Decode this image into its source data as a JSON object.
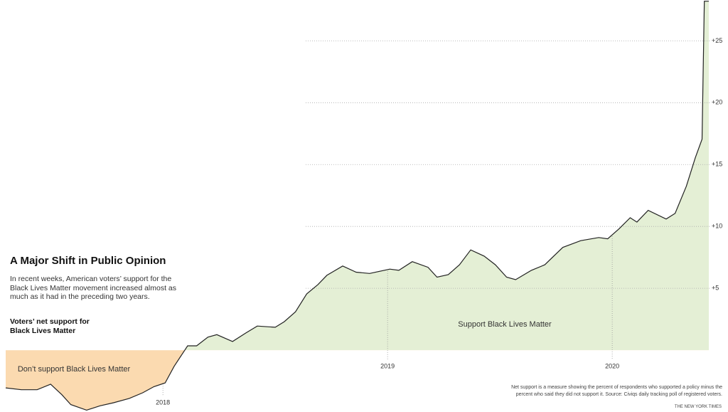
{
  "chart_data": {
    "type": "area",
    "title": "A Major Shift in Public Opinion",
    "description": "In recent weeks, American voters’ support for the Black Lives Matter movement increased almost as much as it had in the preceding two years.",
    "subtitle": "Voters’ net support for Black Lives Matter",
    "annotations": [
      "Support Black Lives Matter",
      "Don’t support Black Lives Matter"
    ],
    "note": "Net support is a measure showing the percent of respondents who supported a policy minus the percent who said they did not support it. Source: Civiqs daily tracking poll of registered voters.",
    "source": "THE NEW YORK TIMES",
    "x": [
      2017.3,
      2017.37,
      2017.44,
      2017.5,
      2017.55,
      2017.59,
      2017.66,
      2017.72,
      2017.78,
      2017.85,
      2017.91,
      2017.96,
      2018.01,
      2018.05,
      2018.11,
      2018.15,
      2018.2,
      2018.24,
      2018.31,
      2018.37,
      2018.42,
      2018.5,
      2018.54,
      2018.59,
      2018.64,
      2018.69,
      2018.73,
      2018.8,
      2018.86,
      2018.92,
      2019.01,
      2019.05,
      2019.11,
      2019.18,
      2019.22,
      2019.27,
      2019.32,
      2019.37,
      2019.43,
      2019.48,
      2019.53,
      2019.57,
      2019.64,
      2019.7,
      2019.78,
      2019.86,
      2019.94,
      2019.98,
      2020.03,
      2020.08,
      2020.11,
      2020.16,
      2020.24,
      2020.28,
      2020.33,
      2020.37,
      2020.4,
      2020.41,
      2020.43
    ],
    "series": [
      {
        "color": "#222222",
        "values": [
          -3.05,
          -3.2,
          -3.2,
          -2.75,
          -3.6,
          -4.4,
          -4.85,
          -4.5,
          -4.25,
          -3.9,
          -3.45,
          -2.95,
          -2.65,
          -1.3,
          0.35,
          0.35,
          1.05,
          1.25,
          0.7,
          1.4,
          1.95,
          1.85,
          2.3,
          3.1,
          4.55,
          5.3,
          6.05,
          6.8,
          6.3,
          6.2,
          6.55,
          6.45,
          7.15,
          6.7,
          5.9,
          6.1,
          6.9,
          8.1,
          7.6,
          6.9,
          5.9,
          5.7,
          6.45,
          6.9,
          8.3,
          8.85,
          9.1,
          9.0,
          9.8,
          10.7,
          10.35,
          11.3,
          10.6,
          11.05,
          13.25,
          15.55,
          17.05,
          28.2,
          28.2
        ]
      }
    ],
    "positive_color": "#e4efd5",
    "negative_color": "#fbdab0",
    "xlim": [
      2017.3,
      2020.43
    ],
    "xticks": [
      2018,
      2019,
      2020
    ],
    "ylim": [
      -5,
      28.3
    ],
    "yticks": [
      {
        "value": 5,
        "label": "+5"
      },
      {
        "value": 10,
        "label": "+10"
      },
      {
        "value": 15,
        "label": "+15"
      },
      {
        "value": 20,
        "label": "+20"
      },
      {
        "value": 25,
        "label": "+25"
      }
    ],
    "grid": true
  }
}
